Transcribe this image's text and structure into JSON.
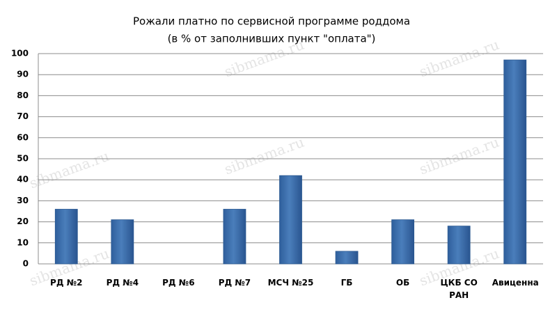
{
  "chart_data": {
    "type": "bar",
    "title": "Рожали платно по сервисной программе роддома",
    "subtitle": "(в % от заполнивших пункт \"оплата\")",
    "watermark": "sibmama.ru",
    "categories": [
      "РД №2",
      "РД №4",
      "РД №6",
      "РД №7",
      "МСЧ №25",
      "ГБ",
      "ОБ",
      "ЦКБ СО РАН",
      "Авиценна"
    ],
    "values": [
      26,
      21,
      0,
      26,
      42,
      6,
      21,
      18,
      97
    ],
    "color": "#4a7ebb",
    "ylim": [
      0,
      100
    ],
    "yticks": [
      0,
      10,
      20,
      30,
      40,
      50,
      60,
      70,
      80,
      90,
      100
    ],
    "grid": true
  }
}
